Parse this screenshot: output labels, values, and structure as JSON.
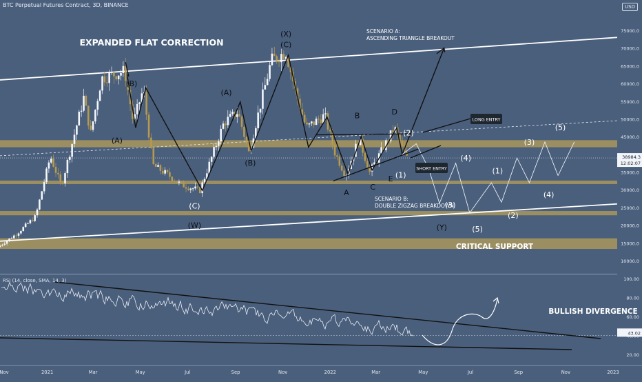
{
  "header": {
    "symbol": "BTC Perpetual Futures Contract, 3D, BINANCE",
    "currency_badge": "USD"
  },
  "rsi": {
    "label": "RSI (14, close, SMA, 14, 3)",
    "current_value": "43.02"
  },
  "price": {
    "current_value": "38984.3",
    "countdown": "12:02:07"
  },
  "annotations": {
    "title": "EXPANDED FLAT CORRECTION",
    "scenario_a": [
      "SCENARIO A:",
      "ASCENDING TRIANGLE BREAKOUT"
    ],
    "scenario_b": [
      "SCENARIO B:",
      "DOUBLE ZIGZAG BREAKDOWN"
    ],
    "critical_support": "CRITICAL SUPPORT",
    "bullish_divergence": "BULLISH DIVERGENCE",
    "long_entry": "LONG ENTRY",
    "short_entry": "SHORT ENTRY"
  },
  "colors": {
    "background": "#4a5f7c",
    "zone": "#b29b5a",
    "candle_up": "#f4f6fb",
    "candle_down": "#b79a4e",
    "rsi_line": "#e9eef6",
    "trendline": "#ffffff"
  },
  "chart_data": [
    {
      "type": "candlestick",
      "price_axis_ticks": [
        "75000.0",
        "70000.0",
        "65000.0",
        "60000.0",
        "55000.0",
        "50000.0",
        "45000.0",
        "40000.0",
        "35000.0",
        "30000.0",
        "25000.0",
        "20000.0",
        "15000.0",
        "10000.0"
      ],
      "time_axis_labels": [
        "Nov",
        "2021",
        "Mar",
        "May",
        "Jul",
        "Sep",
        "Nov",
        "2022",
        "Mar",
        "May",
        "Jul",
        "Sep",
        "Nov",
        "2023"
      ],
      "ylim": [
        7000,
        80000
      ],
      "support_zones": [
        [
          42000,
          44000
        ],
        [
          31600,
          32600
        ],
        [
          22800,
          24000
        ],
        [
          13300,
          16300
        ]
      ],
      "wave_labels": [
        {
          "text": "(X)",
          "date": "2021-11-05",
          "price": 74000
        },
        {
          "text": "(C)",
          "date": "2021-11-05",
          "price": 71000
        },
        {
          "text": "(B)",
          "date": "2021-04-20",
          "price": 60000
        },
        {
          "text": "(A)",
          "date": "2021-04-01",
          "price": 44000
        },
        {
          "text": "(A)",
          "date": "2021-08-20",
          "price": 57500
        },
        {
          "text": "(B)",
          "date": "2021-09-20",
          "price": 37600
        },
        {
          "text": "(C)",
          "date": "2021-07-10",
          "price": 25500
        },
        {
          "text": "(W)",
          "date": "2021-07-10",
          "price": 20000
        },
        {
          "text": "B",
          "date": "2022-02-05",
          "price": 51000
        },
        {
          "text": "D",
          "date": "2022-03-25",
          "price": 52000
        },
        {
          "text": "A",
          "date": "2022-01-22",
          "price": 29300
        },
        {
          "text": "C",
          "date": "2022-02-25",
          "price": 30800
        },
        {
          "text": "E",
          "date": "2022-03-20",
          "price": 33200
        },
        {
          "text": "(1)",
          "date": "2022-04-02",
          "price": 34200
        },
        {
          "text": "(2)",
          "date": "2022-04-12",
          "price": 46100
        },
        {
          "text": "(3)",
          "date": "2022-06-05",
          "price": 25800
        },
        {
          "text": "(4)",
          "date": "2022-06-25",
          "price": 39000
        },
        {
          "text": "(5)",
          "date": "2022-07-10",
          "price": 19000
        },
        {
          "text": "(Y)",
          "date": "2022-05-25",
          "price": 19400
        },
        {
          "text": "(1)",
          "date": "2022-08-05",
          "price": 35400
        },
        {
          "text": "(2)",
          "date": "2022-08-25",
          "price": 22800
        },
        {
          "text": "(3)",
          "date": "2022-09-15",
          "price": 43500
        },
        {
          "text": "(4)",
          "date": "2022-10-10",
          "price": 28700
        },
        {
          "text": "(5)",
          "date": "2022-10-25",
          "price": 47700
        }
      ]
    },
    {
      "type": "line",
      "name": "RSI",
      "rsi_axis_ticks": [
        "100.00",
        "80.00",
        "60.00",
        "40.00",
        "20.00"
      ],
      "ylim": [
        11,
        101
      ],
      "last_value": 43.02
    }
  ]
}
